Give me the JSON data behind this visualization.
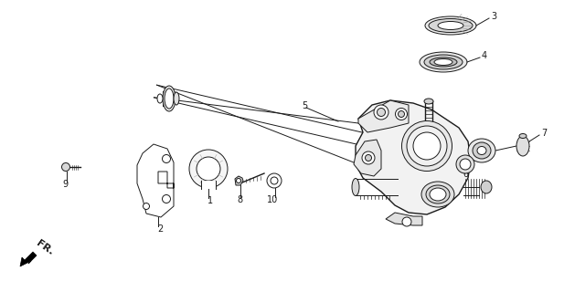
{
  "background_color": "#ffffff",
  "line_color": "#1a1a1a",
  "figsize": [
    6.17,
    3.2
  ],
  "dpi": 100,
  "xlim": [
    0,
    617
  ],
  "ylim": [
    320,
    0
  ]
}
